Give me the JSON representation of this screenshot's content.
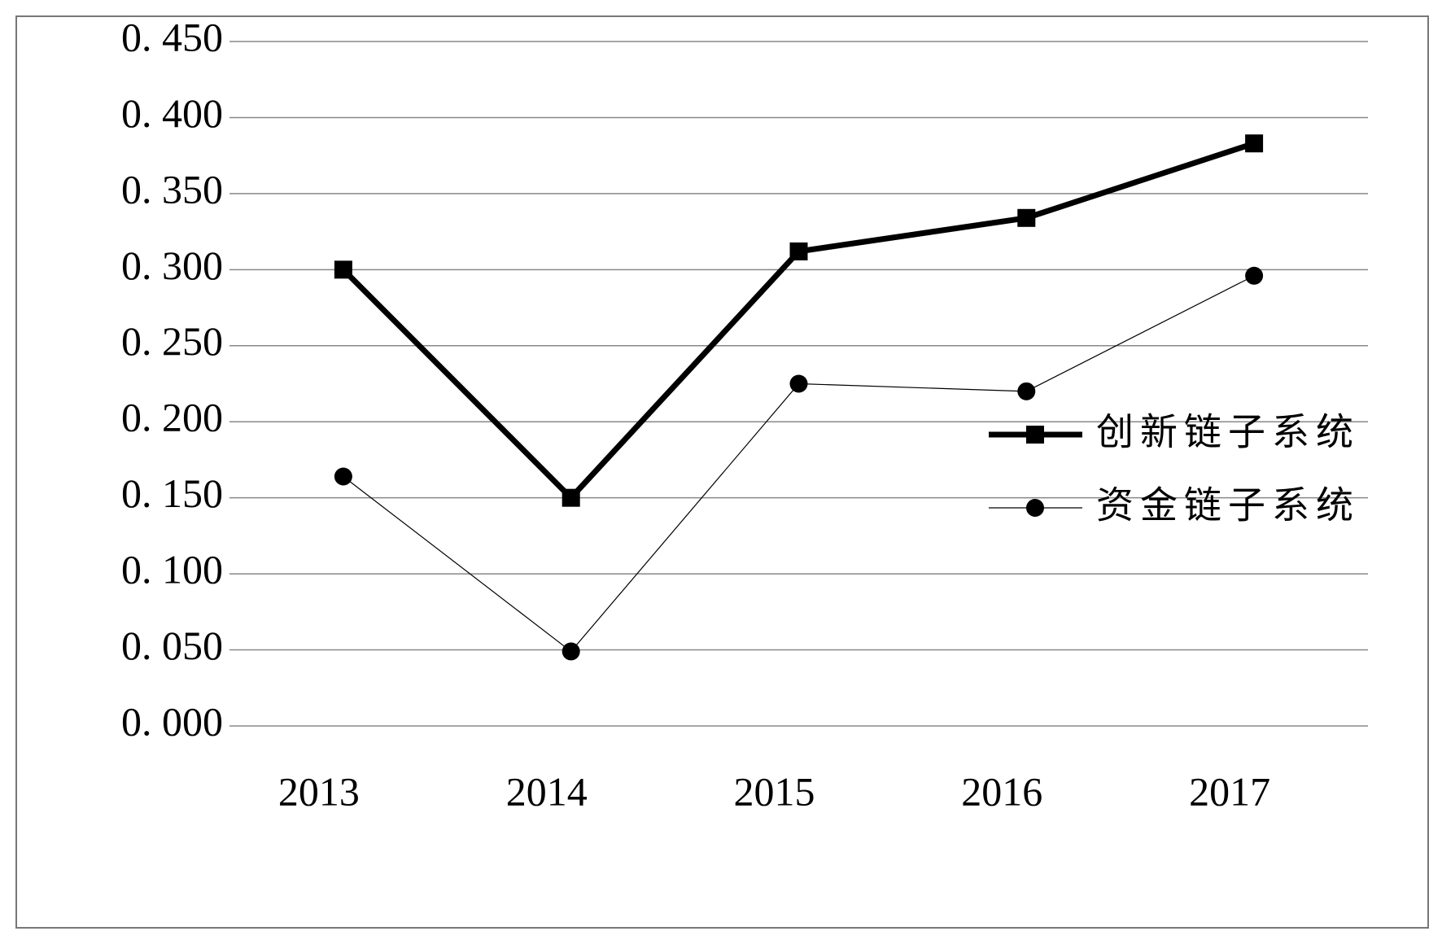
{
  "chart_data": {
    "type": "line",
    "categories": [
      "2013",
      "2014",
      "2015",
      "2016",
      "2017"
    ],
    "series": [
      {
        "name": "创新链子系统",
        "color": "#000000",
        "marker": "square",
        "values": [
          0.3,
          0.15,
          0.312,
          0.334,
          0.383
        ]
      },
      {
        "name": "资金链子系统",
        "color": "#000000",
        "marker": "circle",
        "values": [
          0.164,
          0.049,
          0.225,
          0.22,
          0.296
        ]
      }
    ],
    "ylim": [
      0,
      0.45
    ],
    "yticks": [
      {
        "value": 0,
        "label": "0. 000"
      },
      {
        "value": 0.05,
        "label": "0. 050"
      },
      {
        "value": 0.1,
        "label": "0. 100"
      },
      {
        "value": 0.15,
        "label": "0. 150"
      },
      {
        "value": 0.2,
        "label": "0. 200"
      },
      {
        "value": 0.25,
        "label": "0. 250"
      },
      {
        "value": 0.3,
        "label": "0. 300"
      },
      {
        "value": 0.35,
        "label": "0. 350"
      },
      {
        "value": 0.4,
        "label": "0. 400"
      },
      {
        "value": 0.45,
        "label": "0. 450"
      }
    ],
    "grid": true
  }
}
